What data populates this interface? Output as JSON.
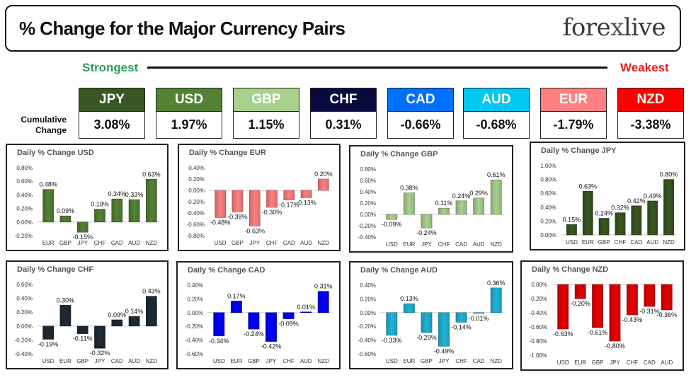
{
  "header": {
    "title": "% Change for the Major Currency Pairs",
    "logo": {
      "left": "fore",
      "mid": "x",
      "right": "live"
    }
  },
  "scale": {
    "strongest": "Strongest",
    "weakest": "Weakest"
  },
  "cumulative": {
    "label_line1": "Cumulative",
    "label_line2": "Change",
    "items": [
      {
        "code": "JPY",
        "value": "3.08%",
        "color": "#385723"
      },
      {
        "code": "USD",
        "value": "1.97%",
        "color": "#548235"
      },
      {
        "code": "GBP",
        "value": "1.15%",
        "color": "#a9d18e"
      },
      {
        "code": "CHF",
        "value": "0.31%",
        "color": "#0a0a3e"
      },
      {
        "code": "CAD",
        "value": "-0.66%",
        "color": "#0070ff"
      },
      {
        "code": "AUD",
        "value": "-0.68%",
        "color": "#00c8f0"
      },
      {
        "code": "EUR",
        "value": "-1.79%",
        "color": "#ff8080"
      },
      {
        "code": "NZD",
        "value": "-3.38%",
        "color": "#ff0000"
      }
    ]
  },
  "chart_data": [
    {
      "type": "bar",
      "title": "Daily % Change USD",
      "color": "#548235",
      "categories": [
        "EUR",
        "GBP",
        "JPY",
        "CHF",
        "CAD",
        "AUD",
        "NZD"
      ],
      "values": [
        0.48,
        0.09,
        -0.15,
        0.19,
        0.34,
        0.33,
        0.63
      ],
      "labels": [
        "0.48%",
        "0.09%",
        "-0.15%",
        "0.19%",
        "0.34%",
        "0.33%",
        "0.63%"
      ],
      "ticks": [
        "0.80%",
        "0.60%",
        "0.40%",
        "0.20%",
        "0.00%",
        "-0.20%"
      ],
      "ylim": [
        -0.2,
        0.8
      ]
    },
    {
      "type": "bar",
      "title": "Daily % Change EUR",
      "color": "#ff8080",
      "categories": [
        "USD",
        "GBP",
        "JPY",
        "CHF",
        "CAD",
        "AUD",
        "NZD"
      ],
      "values": [
        -0.48,
        -0.38,
        -0.63,
        -0.3,
        -0.17,
        -0.13,
        0.2
      ],
      "labels": [
        "-0.48%",
        "-0.38%",
        "-0.63%",
        "-0.30%",
        "-0.17%",
        "-0.13%",
        "0.20%"
      ],
      "ticks": [
        "0.40%",
        "0.20%",
        "0.00%",
        "-0.20%",
        "-0.40%",
        "-0.60%",
        "-0.80%"
      ],
      "ylim": [
        -0.8,
        0.4
      ]
    },
    {
      "type": "bar",
      "title": "Daily % Change GBP",
      "color": "#a9d18e",
      "categories": [
        "USD",
        "EUR",
        "JPY",
        "CHF",
        "CAD",
        "AUD",
        "NZD"
      ],
      "values": [
        -0.09,
        0.38,
        -0.24,
        0.11,
        0.24,
        0.29,
        0.61
      ],
      "labels": [
        "-0.09%",
        "0.38%",
        "-0.24%",
        "0.11%",
        "0.24%",
        "0.29%",
        "0.61%"
      ],
      "ticks": [
        "0.80%",
        "0.60%",
        "0.40%",
        "0.20%",
        "0.00%",
        "-0.20%",
        "-0.40%"
      ],
      "ylim": [
        -0.4,
        0.8
      ]
    },
    {
      "type": "bar",
      "title": "Daily % Change JPY",
      "color": "#385723",
      "categories": [
        "USD",
        "EUR",
        "GBP",
        "CHF",
        "CAD",
        "AUD",
        "NZD"
      ],
      "values": [
        0.15,
        0.63,
        0.24,
        0.32,
        0.42,
        0.49,
        0.8
      ],
      "labels": [
        "0.15%",
        "0.63%",
        "0.24%",
        "0.32%",
        "0.42%",
        "0.49%",
        "0.80%"
      ],
      "ticks": [
        "1.00%",
        "0.80%",
        "0.60%",
        "0.40%",
        "0.20%",
        "0.00%"
      ],
      "ylim": [
        0,
        1.0
      ]
    },
    {
      "type": "bar",
      "title": "Daily % Change CHF",
      "color": "#1f2a36",
      "categories": [
        "USD",
        "EUR",
        "GBP",
        "JPY",
        "CAD",
        "AUD",
        "NZD"
      ],
      "values": [
        -0.19,
        0.3,
        -0.11,
        -0.32,
        0.09,
        0.14,
        0.43
      ],
      "labels": [
        "-0.19%",
        "0.30%",
        "-0.11%",
        "-0.32%",
        "0.09%",
        "0.14%",
        "0.43%"
      ],
      "ticks": [
        "0.60%",
        "0.40%",
        "0.20%",
        "0.00%",
        "-0.20%",
        "-0.40%"
      ],
      "ylim": [
        -0.4,
        0.6
      ]
    },
    {
      "type": "bar",
      "title": "Daily % Change CAD",
      "color": "#0000ff",
      "categories": [
        "USD",
        "EUR",
        "GBP",
        "JPY",
        "CHF",
        "AUD",
        "NZD"
      ],
      "values": [
        -0.34,
        0.17,
        -0.24,
        -0.42,
        -0.09,
        0.01,
        0.31
      ],
      "labels": [
        "-0.34%",
        "0.17%",
        "-0.24%",
        "-0.42%",
        "-0.09%",
        "0.01%",
        "0.31%"
      ],
      "ticks": [
        "0.40%",
        "0.20%",
        "0.00%",
        "-0.20%",
        "-0.40%",
        "-0.60%"
      ],
      "ylim": [
        -0.6,
        0.4
      ]
    },
    {
      "type": "bar",
      "title": "Daily % Change AUD",
      "color": "#1fb4d8",
      "categories": [
        "USD",
        "EUR",
        "GBP",
        "JPY",
        "CHF",
        "CAD",
        "NZD"
      ],
      "values": [
        -0.33,
        0.13,
        -0.29,
        -0.49,
        -0.14,
        -0.01,
        0.36
      ],
      "labels": [
        "-0.33%",
        "0.13%",
        "-0.29%",
        "-0.49%",
        "-0.14%",
        "-0.01%",
        "0.36%"
      ],
      "ticks": [
        "0.40%",
        "0.20%",
        "0.00%",
        "-0.20%",
        "-0.40%",
        "-0.60%"
      ],
      "ylim": [
        -0.6,
        0.4
      ]
    },
    {
      "type": "bar",
      "title": "Daily % Change NZD",
      "color": "#e60000",
      "categories": [
        "USD",
        "EUR",
        "GBP",
        "JPY",
        "CHF",
        "CAD",
        "AUD"
      ],
      "values": [
        -0.63,
        -0.2,
        -0.61,
        -0.8,
        -0.43,
        -0.31,
        -0.36
      ],
      "labels": [
        "-0.63%",
        "-0.20%",
        "-0.61%",
        "-0.80%",
        "-0.43%",
        "-0.31%",
        "-0.36%"
      ],
      "ticks": [
        "0.00%",
        "-0.20%",
        "-0.40%",
        "-0.60%",
        "-0.80%",
        "-1.00%"
      ],
      "ylim": [
        -1.0,
        0
      ]
    }
  ]
}
